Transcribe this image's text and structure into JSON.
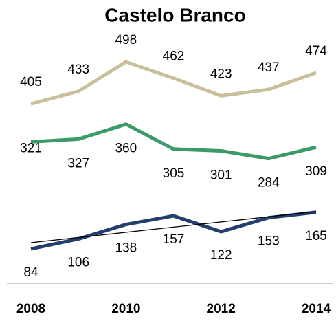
{
  "chart_data": {
    "type": "line",
    "title": "Castelo Branco",
    "x": [
      2008,
      2009,
      2010,
      2011,
      2012,
      2013,
      2014
    ],
    "xlim": [
      2008,
      2014
    ],
    "xticks": [
      2008,
      2010,
      2012,
      2014
    ],
    "ylim": [
      0,
      550
    ],
    "series": [
      {
        "color": "#c9c09b",
        "values": [
          405,
          433,
          498,
          462,
          423,
          437,
          474
        ]
      },
      {
        "color": "#3a9a68",
        "values": [
          321,
          327,
          360,
          305,
          301,
          284,
          309
        ]
      },
      {
        "color": "#243f6e",
        "values": [
          84,
          106,
          138,
          157,
          122,
          153,
          165
        ]
      }
    ]
  }
}
